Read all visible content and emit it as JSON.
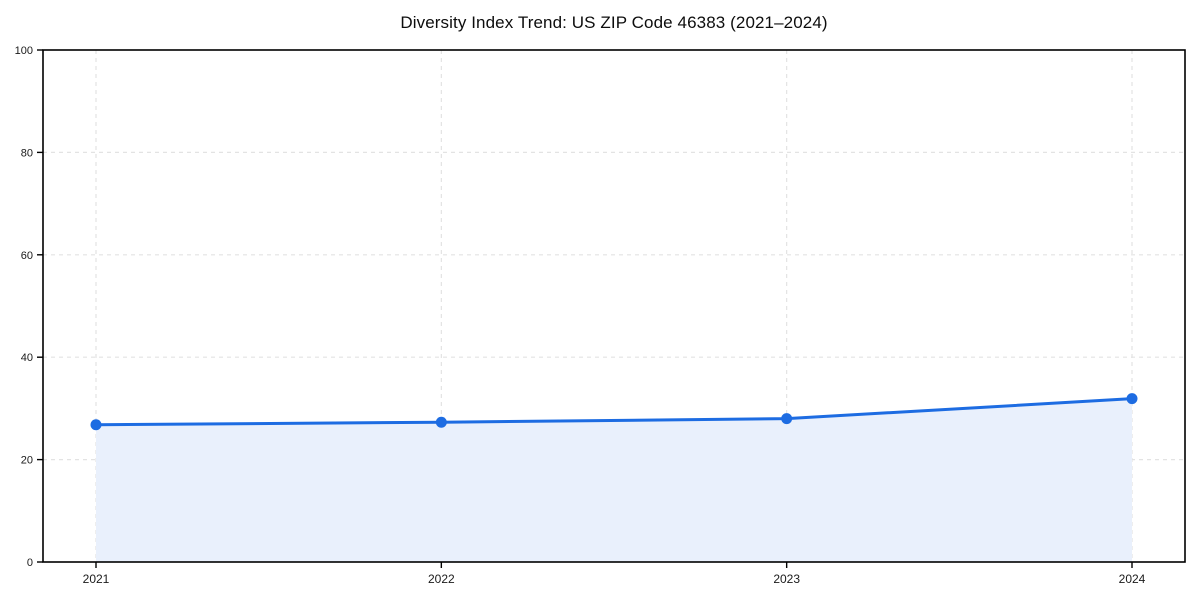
{
  "chart_data": {
    "type": "area",
    "title": "Diversity Index Trend: US ZIP Code 46383 (2021–2024)",
    "x": [
      "2021",
      "2022",
      "2023",
      "2024"
    ],
    "values": [
      26.8,
      27.3,
      28.0,
      31.9
    ],
    "series_name": "Diversity Index",
    "xlabel": "",
    "ylabel": "",
    "ylim": [
      0,
      100
    ],
    "yticks": [
      0,
      20,
      40,
      60,
      80,
      100
    ],
    "grid": true,
    "grid_style": "dashed",
    "legend": "none",
    "colors": {
      "line": "#1d6ce2",
      "marker": "#1d6ce2",
      "fill": "#e9f0fc",
      "grid": "#e3e3e3",
      "axis": "#000000",
      "tick_text": "#1a1a1a",
      "title_text": "#0d0d0d",
      "background": "#ffffff"
    }
  }
}
